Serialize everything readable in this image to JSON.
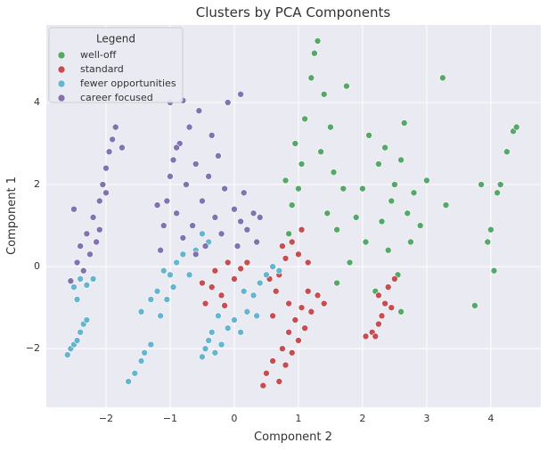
{
  "chart_data": {
    "type": "scatter",
    "title": "Clusters by PCA Components",
    "x_label": "Component 2",
    "y_label": "Component 1",
    "legend_title": "Legend",
    "legend_position": "upper-left",
    "grid": true,
    "xlim": [
      -2.93,
      4.78
    ],
    "ylim": [
      -3.43,
      5.89
    ],
    "xticks": [
      {
        "value": -2,
        "label": "−2"
      },
      {
        "value": -1,
        "label": "−1"
      },
      0,
      1,
      2,
      3,
      4
    ],
    "yticks": [
      {
        "value": -2,
        "label": "−2"
      },
      0,
      2,
      4
    ],
    "series": [
      {
        "name": "well-off",
        "color": "#55a868",
        "x": [
          1.0,
          0.9,
          0.85,
          0.8,
          1.05,
          0.95,
          1.1,
          1.2,
          1.3,
          1.25,
          1.4,
          1.5,
          1.35,
          1.45,
          1.55,
          1.6,
          1.7,
          1.6,
          1.75,
          1.8,
          1.9,
          2.0,
          2.05,
          2.1,
          2.2,
          2.25,
          2.3,
          2.35,
          2.4,
          2.45,
          2.5,
          2.55,
          2.6,
          2.65,
          2.6,
          2.7,
          2.75,
          2.8,
          2.9,
          3.0,
          3.25,
          3.75,
          3.85,
          3.95,
          4.0,
          4.05,
          4.15,
          4.25,
          4.35,
          4.4,
          4.1,
          3.3
        ],
        "y": [
          1.9,
          1.5,
          0.8,
          2.1,
          2.5,
          3.0,
          3.6,
          4.6,
          5.5,
          5.2,
          4.2,
          3.4,
          2.8,
          1.3,
          2.3,
          0.9,
          1.9,
          -0.4,
          4.4,
          0.1,
          1.2,
          1.9,
          0.6,
          3.2,
          -0.6,
          2.5,
          1.1,
          2.9,
          0.4,
          1.6,
          2.0,
          -0.2,
          2.6,
          3.5,
          -1.1,
          1.3,
          0.6,
          1.8,
          1.0,
          2.1,
          4.6,
          -0.95,
          2.0,
          0.6,
          0.9,
          -0.1,
          2.0,
          2.8,
          3.3,
          3.4,
          1.8,
          1.5
        ]
      },
      {
        "name": "standard",
        "color": "#c44e52",
        "x": [
          -0.45,
          -0.35,
          -0.3,
          -0.2,
          -0.1,
          0.0,
          0.1,
          0.2,
          -0.5,
          -0.15,
          0.45,
          0.5,
          0.6,
          0.7,
          0.75,
          0.8,
          0.85,
          0.9,
          0.95,
          1.0,
          1.05,
          1.1,
          1.15,
          1.2,
          1.3,
          1.4,
          0.6,
          0.65,
          0.7,
          0.8,
          0.85,
          0.9,
          1.0,
          1.05,
          1.15,
          0.55,
          0.75,
          2.05,
          2.15,
          2.25,
          2.3,
          2.35,
          2.4,
          2.45,
          2.25,
          2.5,
          2.2
        ],
        "y": [
          -0.9,
          -0.5,
          -0.1,
          -0.7,
          0.1,
          -0.3,
          -0.05,
          0.1,
          -0.4,
          -0.95,
          -2.9,
          -2.6,
          -2.3,
          -2.8,
          -2.0,
          -2.4,
          -1.6,
          -2.1,
          -1.3,
          -1.8,
          -1.0,
          -1.5,
          -0.6,
          -1.1,
          -0.7,
          -0.9,
          -1.2,
          -0.6,
          -0.2,
          0.2,
          -0.9,
          0.6,
          0.3,
          0.9,
          0.1,
          -0.3,
          0.5,
          -1.7,
          -1.6,
          -1.4,
          -1.2,
          -0.9,
          -0.5,
          -1.0,
          -0.7,
          -0.3,
          -1.7
        ]
      },
      {
        "name": "fewer opportunities",
        "color": "#64b5cd",
        "x": [
          -2.6,
          -2.55,
          -2.5,
          -2.45,
          -2.4,
          -2.35,
          -2.3,
          -2.5,
          -2.4,
          -2.3,
          -2.2,
          -2.45,
          -1.65,
          -1.55,
          -1.45,
          -1.4,
          -1.3,
          -1.45,
          -1.3,
          -1.2,
          -1.15,
          -1.05,
          -1.0,
          -0.95,
          -0.9,
          -0.8,
          -0.7,
          -0.6,
          -0.5,
          -0.4,
          -1.1,
          -0.5,
          -0.45,
          -0.4,
          -0.35,
          -0.3,
          -0.2,
          -0.1,
          0.0,
          0.1,
          0.2,
          0.3,
          0.4,
          0.5,
          0.6,
          0.7,
          0.15,
          0.35,
          -0.25
        ],
        "y": [
          -2.15,
          -2.0,
          -1.9,
          -1.8,
          -1.6,
          -1.4,
          -1.3,
          -0.5,
          -0.3,
          -0.45,
          -0.3,
          -0.8,
          -2.8,
          -2.6,
          -2.3,
          -2.1,
          -1.9,
          -1.1,
          -0.8,
          -0.6,
          -1.2,
          -0.8,
          -0.2,
          -0.5,
          0.1,
          0.3,
          -0.2,
          0.4,
          0.8,
          0.6,
          -0.1,
          -2.2,
          -2.0,
          -1.8,
          -1.6,
          -2.1,
          -1.9,
          -1.5,
          -1.3,
          -1.6,
          -1.1,
          -0.7,
          -0.4,
          -0.2,
          0.0,
          -0.1,
          -0.6,
          -1.2,
          -1.2
        ]
      },
      {
        "name": "career focused",
        "color": "#8172b2",
        "x": [
          -2.55,
          -2.45,
          -2.4,
          -2.3,
          -2.25,
          -2.2,
          -2.15,
          -2.1,
          -2.05,
          -2.0,
          -1.95,
          -1.9,
          -1.85,
          -2.5,
          -1.75,
          -2.35,
          -2.1,
          -2.0,
          -1.15,
          -1.1,
          -1.05,
          -1.0,
          -0.95,
          -0.9,
          -0.85,
          -0.8,
          -0.75,
          -0.7,
          -0.65,
          -0.6,
          -0.55,
          -0.5,
          -0.45,
          -0.4,
          -0.35,
          -0.3,
          -0.25,
          -0.2,
          -0.15,
          -0.1,
          0.0,
          0.05,
          0.1,
          0.15,
          0.2,
          0.3,
          0.4,
          -1.0,
          -0.8,
          0.1,
          -1.2,
          -0.6,
          -0.9,
          0.35
        ],
        "y": [
          -0.35,
          0.1,
          0.5,
          0.8,
          0.3,
          1.2,
          0.6,
          1.6,
          2.0,
          2.4,
          2.8,
          3.1,
          3.4,
          1.4,
          2.9,
          -0.1,
          0.9,
          1.8,
          0.4,
          1.0,
          1.6,
          2.2,
          2.6,
          1.3,
          3.0,
          0.7,
          2.0,
          3.4,
          1.0,
          2.5,
          3.8,
          1.6,
          0.5,
          2.2,
          3.2,
          1.2,
          2.7,
          0.8,
          1.9,
          4.0,
          1.4,
          0.5,
          1.1,
          1.8,
          0.9,
          1.3,
          1.2,
          4.0,
          4.05,
          4.2,
          1.5,
          0.3,
          2.9,
          0.6
        ]
      }
    ]
  }
}
